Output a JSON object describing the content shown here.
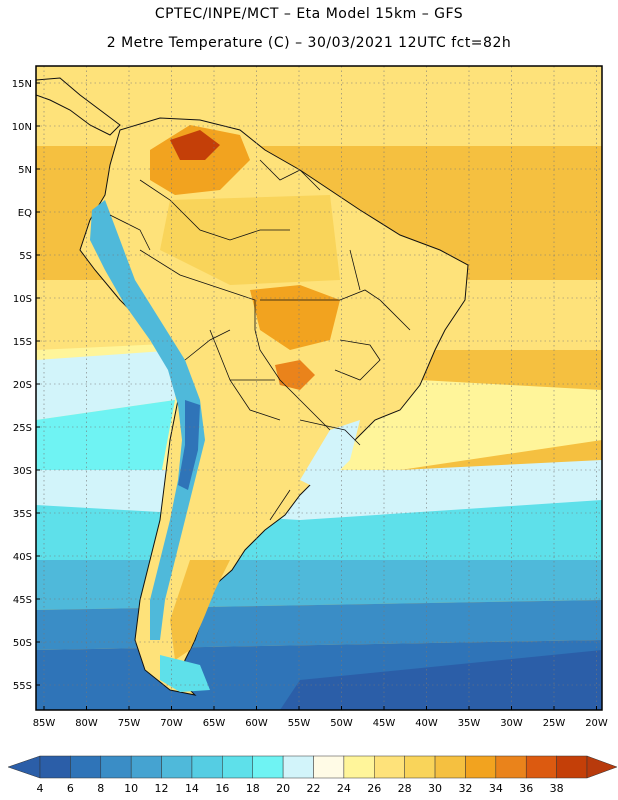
{
  "header": {
    "line1": "CPTEC/INPE/MCT –  Eta Model 15km – GFS",
    "line2": "2 Metre Temperature (C) – 30/03/2021 12UTC fct=82h"
  },
  "map": {
    "region": "South America",
    "lat_labels": [
      "15N",
      "10N",
      "5N",
      "EQ",
      "5S",
      "10S",
      "15S",
      "20S",
      "25S",
      "30S",
      "35S",
      "40S",
      "45S",
      "50S",
      "55S"
    ],
    "lon_labels": [
      "85W",
      "80W",
      "75W",
      "70W",
      "65W",
      "60W",
      "55W",
      "50W",
      "45W",
      "40W",
      "35W",
      "30W",
      "25W",
      "20W"
    ],
    "lat_range": [
      -58,
      17
    ],
    "lon_range": [
      -86,
      -20
    ]
  },
  "colorbar": {
    "ticks": [
      "4",
      "6",
      "8",
      "10",
      "12",
      "14",
      "16",
      "18",
      "20",
      "22",
      "24",
      "26",
      "28",
      "30",
      "32",
      "34",
      "36",
      "38"
    ],
    "colors": [
      "#2b5ea8",
      "#2f74b8",
      "#3a8dc6",
      "#45a3d1",
      "#4fb9da",
      "#55cde3",
      "#5ee0ea",
      "#6ff3f3",
      "#d2f4fa",
      "#fffbe6",
      "#fff59a",
      "#fee27a",
      "#f9d45a",
      "#f5c040",
      "#f2a31f",
      "#ea831b",
      "#dc5a10",
      "#c43f08",
      "#b83a0c"
    ]
  }
}
